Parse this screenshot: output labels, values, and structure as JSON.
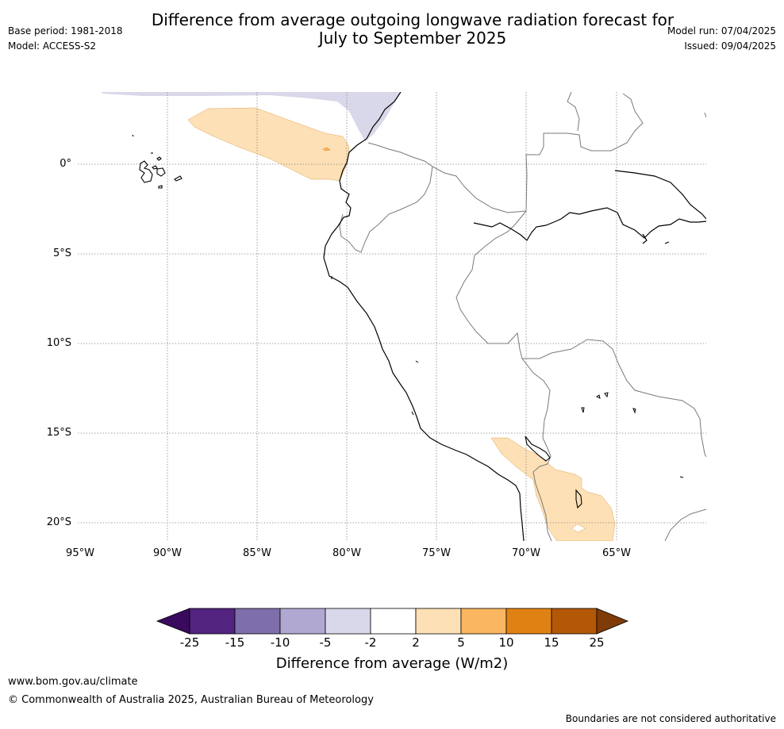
{
  "header": {
    "title_line1": "Difference from average outgoing longwave radiation forecast for",
    "title_line2": "July to September 2025",
    "base_period": "Base period: 1981-2018",
    "model": "Model: ACCESS-S2",
    "model_run": "Model run: 07/04/2025",
    "issued": "Issued: 09/04/2025"
  },
  "map": {
    "lon_labels": [
      "95°W",
      "90°W",
      "85°W",
      "80°W",
      "75°W",
      "70°W",
      "65°W"
    ],
    "lat_labels": [
      "0°",
      "5°S",
      "10°S",
      "15°S",
      "20°S"
    ]
  },
  "colorbar": {
    "tick_labels": [
      "-25",
      "-15",
      "-10",
      "-5",
      "-2",
      "2",
      "5",
      "10",
      "15",
      "25"
    ],
    "colors": [
      "#3a0a5e",
      "#52237f",
      "#7e6fab",
      "#b0a8d1",
      "#d8d8ea",
      "#ffffff",
      "#fde0b5",
      "#fbb661",
      "#e08213",
      "#b35806",
      "#7f3b08"
    ],
    "title": "Difference from average (W/m2)"
  },
  "footer": {
    "website": "www.bom.gov.au/climate",
    "copyright": "© Commonwealth of Australia 2025, Australian Bureau of Meteorology",
    "disclaimer": "Boundaries are not considered authoritative"
  }
}
